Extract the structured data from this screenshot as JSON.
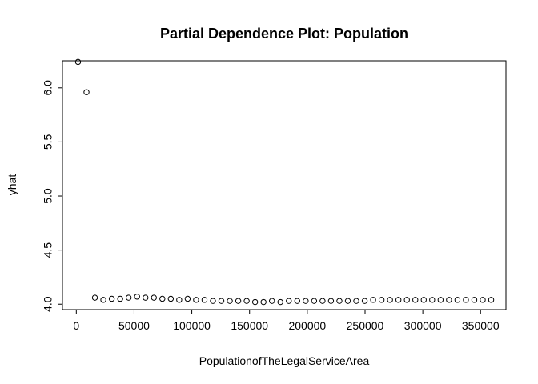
{
  "chart_data": {
    "type": "scatter",
    "title": "Partial Dependence Plot: Population",
    "xlabel": "PopulationofTheLegalServiceArea",
    "ylabel": "yhat",
    "xlim": [
      -12000,
      372000
    ],
    "ylim": [
      3.95,
      6.25
    ],
    "xticks": [
      0,
      50000,
      100000,
      150000,
      200000,
      250000,
      300000,
      350000
    ],
    "xtick_labels": [
      "0",
      "50000",
      "100000",
      "150000",
      "200000",
      "250000",
      "300000",
      "350000"
    ],
    "yticks": [
      4.0,
      4.5,
      5.0,
      5.5,
      6.0
    ],
    "ytick_labels": [
      "4.0",
      "4.5",
      "5.0",
      "5.5",
      "6.0"
    ],
    "grid": false,
    "marker": "open-circle",
    "x": [
      1500,
      8800,
      16100,
      23400,
      30700,
      38000,
      45300,
      52600,
      59900,
      67200,
      74500,
      81800,
      89100,
      96400,
      103700,
      111000,
      118300,
      125600,
      132900,
      140200,
      147500,
      154800,
      162100,
      169400,
      176700,
      184000,
      191300,
      198600,
      205900,
      213200,
      220500,
      227800,
      235100,
      242400,
      249700,
      257000,
      264300,
      271600,
      278900,
      286200,
      293500,
      300800,
      308100,
      315400,
      322700,
      330000,
      337300,
      344600,
      351900,
      359200
    ],
    "y": [
      6.24,
      5.96,
      4.06,
      4.04,
      4.05,
      4.05,
      4.06,
      4.07,
      4.06,
      4.06,
      4.05,
      4.05,
      4.04,
      4.05,
      4.04,
      4.04,
      4.03,
      4.03,
      4.03,
      4.03,
      4.03,
      4.02,
      4.02,
      4.03,
      4.02,
      4.03,
      4.03,
      4.03,
      4.03,
      4.03,
      4.03,
      4.03,
      4.03,
      4.03,
      4.03,
      4.04,
      4.04,
      4.04,
      4.04,
      4.04,
      4.04,
      4.04,
      4.04,
      4.04,
      4.04,
      4.04,
      4.04,
      4.04,
      4.04,
      4.04
    ]
  }
}
